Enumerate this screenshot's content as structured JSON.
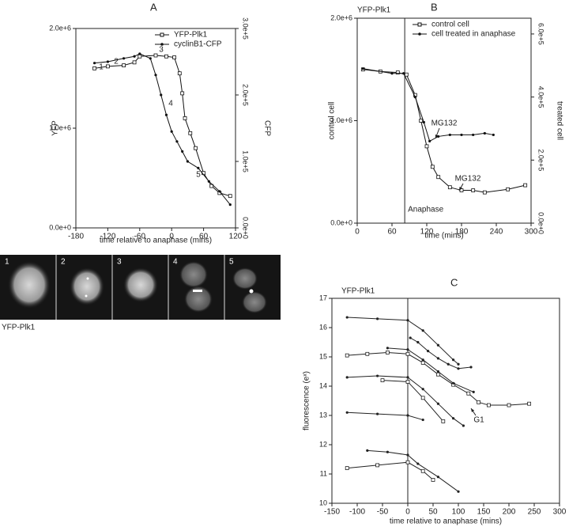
{
  "chart_data": [
    {
      "type": "line",
      "panel_label": "A",
      "xlabel": "time relative to anaphase (mins)",
      "ylabel": "YFP",
      "y2label": "CFP",
      "xlim": [
        -180,
        120
      ],
      "xticks": [
        -180,
        -120,
        -60,
        0,
        60,
        120
      ],
      "ylim": [
        0,
        2000000
      ],
      "yticks": [
        {
          "value": 0,
          "label": "0.0e+0"
        },
        {
          "value": 1000000,
          "label": "1.0e+6"
        },
        {
          "value": 2000000,
          "label": "2.0e+6"
        }
      ],
      "y2lim": [
        0,
        300000
      ],
      "y2ticks": [
        {
          "value": 0,
          "label": "0.0e+0"
        },
        {
          "value": 100000,
          "label": "1.0e+5"
        },
        {
          "value": 200000,
          "label": "2.0e+5"
        },
        {
          "value": 300000,
          "label": "3.0e+5"
        }
      ],
      "legend": "upper right",
      "series": [
        {
          "name": "YFP-Plk1",
          "marker": "square",
          "color": "#111111",
          "x": [
            -145,
            -120,
            -90,
            -70,
            -60,
            -30,
            -10,
            5,
            15,
            20,
            25,
            35,
            45,
            60,
            75,
            90,
            110
          ],
          "values": [
            1600000,
            1620000,
            1630000,
            1660000,
            1720000,
            1730000,
            1720000,
            1710000,
            1550000,
            1350000,
            1100000,
            950000,
            800000,
            550000,
            420000,
            350000,
            320000
          ]
        },
        {
          "name": "cyclinB1-CFP",
          "marker": "dot",
          "color": "#111111",
          "axis": "y2",
          "x": [
            -145,
            -120,
            -90,
            -70,
            -60,
            -40,
            -30,
            -20,
            -10,
            0,
            10,
            20,
            30,
            50,
            70,
            90,
            110
          ],
          "values": [
            248000,
            250000,
            255000,
            258000,
            262000,
            255000,
            230000,
            200000,
            170000,
            145000,
            130000,
            115000,
            100000,
            90000,
            70000,
            55000,
            35000
          ]
        }
      ],
      "annotations": [
        "1",
        "2",
        "3",
        "4",
        "5"
      ]
    },
    {
      "type": "line",
      "panel_label": "B",
      "title": "YFP-Plk1",
      "xlabel": "time (mins)",
      "ylabel": "control cell",
      "y2label": "treated cell",
      "xlim": [
        0,
        300
      ],
      "xticks": [
        0,
        60,
        120,
        180,
        240,
        300
      ],
      "ylim": [
        0,
        2000000
      ],
      "yticks": [
        {
          "value": 0,
          "label": "0.0e+0"
        },
        {
          "value": 1000000,
          "label": "1.0e+6"
        },
        {
          "value": 2000000,
          "label": "2.0e+6"
        }
      ],
      "y2lim": [
        0,
        650000
      ],
      "y2ticks": [
        {
          "value": 0,
          "label": "0.0e+0"
        },
        {
          "value": 200000,
          "label": "2.0e+5"
        },
        {
          "value": 400000,
          "label": "4.0e+5"
        },
        {
          "value": 600000,
          "label": "6.0e+5"
        }
      ],
      "legend": "upper right",
      "vline": {
        "x": 82,
        "label": "Anaphase"
      },
      "series": [
        {
          "name": "control cell",
          "marker": "square",
          "color": "#111111",
          "x": [
            10,
            40,
            70,
            85,
            100,
            110,
            120,
            130,
            140,
            160,
            180,
            200,
            220,
            260,
            290
          ],
          "values": [
            1500000,
            1480000,
            1470000,
            1450000,
            1250000,
            1000000,
            750000,
            550000,
            450000,
            350000,
            320000,
            320000,
            300000,
            330000,
            370000
          ]
        },
        {
          "name": "cell treated in anaphase",
          "marker": "dot",
          "color": "#111111",
          "axis": "y2",
          "x": [
            10,
            60,
            80,
            100,
            115,
            125,
            140,
            160,
            180,
            200,
            220,
            235
          ],
          "values": [
            490000,
            475000,
            475000,
            400000,
            320000,
            260000,
            275000,
            280000,
            280000,
            280000,
            285000,
            280000
          ]
        }
      ],
      "annotations": [
        "MG132",
        "MG132"
      ]
    },
    {
      "type": "line",
      "panel_label": "C",
      "title": "YFP-Plk1",
      "xlabel": "time relative to anaphase (mins)",
      "ylabel": "fluorescence (eˣ)",
      "xlim": [
        -150,
        300
      ],
      "xticks": [
        -150,
        -100,
        -50,
        0,
        50,
        100,
        150,
        200,
        250,
        300
      ],
      "ylim": [
        10,
        17
      ],
      "yticks": [
        10,
        11,
        12,
        13,
        14,
        15,
        16,
        17
      ],
      "vline": {
        "x": 0
      },
      "series": [
        {
          "marker": "dot",
          "color": "#222222",
          "x": [
            -120,
            -60,
            0,
            30,
            60,
            90,
            100
          ],
          "values": [
            16.35,
            16.3,
            16.25,
            15.9,
            15.4,
            14.9,
            14.75
          ]
        },
        {
          "marker": "dot",
          "color": "#222222",
          "x": [
            5,
            20,
            40,
            60,
            80,
            100,
            125
          ],
          "values": [
            15.65,
            15.5,
            15.2,
            14.95,
            14.75,
            14.6,
            14.65
          ]
        },
        {
          "marker": "square",
          "color": "#222222",
          "x": [
            -120,
            -80,
            -40,
            0,
            30,
            60,
            90,
            120,
            140,
            160,
            200,
            240
          ],
          "values": [
            15.05,
            15.1,
            15.15,
            15.1,
            14.8,
            14.4,
            14.05,
            13.75,
            13.45,
            13.35,
            13.35,
            13.4
          ]
        },
        {
          "marker": "dot",
          "color": "#222222",
          "x": [
            -40,
            0,
            30,
            60,
            90,
            130
          ],
          "values": [
            15.3,
            15.25,
            14.9,
            14.5,
            14.1,
            13.8
          ]
        },
        {
          "marker": "dot",
          "color": "#222222",
          "x": [
            -120,
            -60,
            0,
            30,
            60,
            90,
            110
          ],
          "values": [
            14.3,
            14.35,
            14.3,
            13.9,
            13.4,
            12.9,
            12.65
          ]
        },
        {
          "marker": "square",
          "color": "#222222",
          "x": [
            -50,
            0,
            30,
            70
          ],
          "values": [
            14.2,
            14.15,
            13.6,
            12.8
          ]
        },
        {
          "marker": "dot",
          "color": "#222222",
          "x": [
            -120,
            -60,
            0,
            30
          ],
          "values": [
            13.1,
            13.05,
            13.0,
            12.85
          ]
        },
        {
          "marker": "dot",
          "color": "#222222",
          "x": [
            -80,
            -40,
            0,
            20,
            60,
            100
          ],
          "values": [
            11.8,
            11.75,
            11.65,
            11.35,
            10.9,
            10.4
          ]
        },
        {
          "marker": "square",
          "color": "#222222",
          "x": [
            -120,
            -60,
            0,
            30,
            50
          ],
          "values": [
            11.2,
            11.3,
            11.4,
            11.1,
            10.8
          ]
        }
      ],
      "annotations": [
        "G1"
      ]
    }
  ],
  "image_panel": {
    "labels": [
      "1",
      "2",
      "3",
      "4",
      "5"
    ],
    "caption": "YFP-Plk1"
  }
}
